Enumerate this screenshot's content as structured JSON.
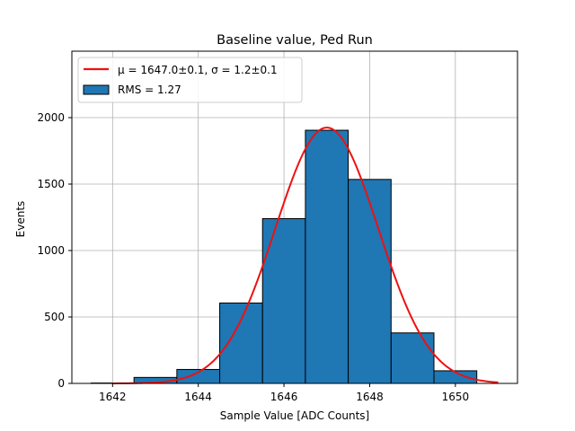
{
  "chart_data": {
    "type": "bar",
    "title": "Baseline value, Ped Run",
    "xlabel": "Sample Value [ADC Counts]",
    "ylabel": "Events",
    "xlim": [
      1641.05,
      1651.45
    ],
    "ylim": [
      0,
      2500
    ],
    "xticks": [
      1642,
      1644,
      1646,
      1648,
      1650
    ],
    "yticks": [
      0,
      500,
      1000,
      1500,
      2000
    ],
    "grid": true,
    "legend_position": "top-left",
    "histogram": {
      "name": "RMS = 1.27",
      "bin_edges": [
        1641.5,
        1642.5,
        1643.5,
        1644.5,
        1645.5,
        1646.5,
        1647.5,
        1648.5,
        1649.5,
        1650.5
      ],
      "values": [
        3,
        45,
        105,
        605,
        1240,
        1905,
        1535,
        380,
        95
      ],
      "color": "#1f77b4",
      "edgecolor": "#000000"
    },
    "fit": {
      "name": "μ = 1647.0±0.1, σ = 1.2±0.1",
      "type": "gaussian",
      "amplitude": 1925,
      "mu": 1647.0,
      "sigma": 1.2,
      "x_range": [
        1642.0,
        1651.0
      ],
      "color": "#ee1111"
    }
  }
}
